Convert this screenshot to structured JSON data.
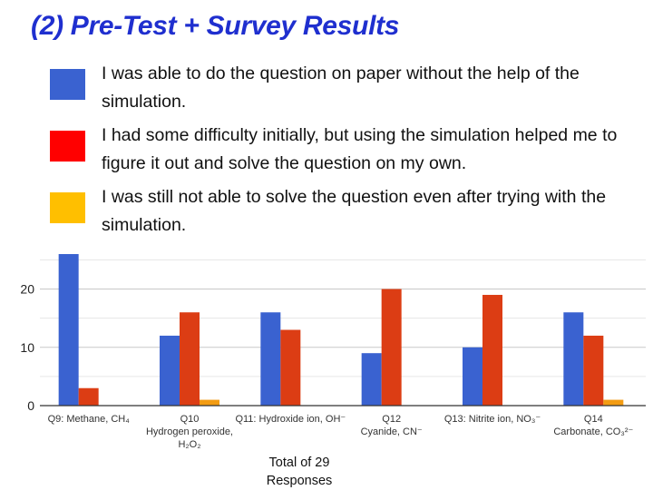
{
  "title": "(2) Pre-Test + Survey Results",
  "legend": [
    {
      "text": "I was able to do the question on paper without the help of the simulation.",
      "color": "#3a62d0"
    },
    {
      "text": "I had some difficulty initially, but using the simulation helped me to figure it out and solve the question on my own.",
      "color": "#ff0000"
    },
    {
      "text": "I was still not able to solve the question even after trying with the simulation.",
      "color": "#ffbf00"
    }
  ],
  "chart_data": {
    "type": "bar",
    "categories": [
      [
        "Q9: Methane, CH₄"
      ],
      [
        "Q10",
        "Hydrogen peroxide,",
        "H₂O₂"
      ],
      [
        "Q11: Hydroxide ion, OH⁻"
      ],
      [
        "Q12",
        "Cyanide, CN⁻"
      ],
      [
        "Q13: Nitrite ion, NO₃⁻"
      ],
      [
        "Q14",
        "Carbonate, CO₃²⁻"
      ]
    ],
    "series": [
      {
        "values": [
          26,
          12,
          16,
          9,
          10,
          16
        ],
        "color": "#3a62d0"
      },
      {
        "values": [
          3,
          16,
          13,
          20,
          19,
          12
        ],
        "color": "#dc3d14"
      },
      {
        "values": [
          0,
          1,
          0,
          0,
          0,
          1
        ],
        "color": "#f39c12"
      }
    ],
    "yticks": [
      0,
      10,
      20
    ],
    "ylim": [
      0,
      26
    ],
    "grid": true
  },
  "footer": [
    "Total of 29",
    "Responses"
  ]
}
